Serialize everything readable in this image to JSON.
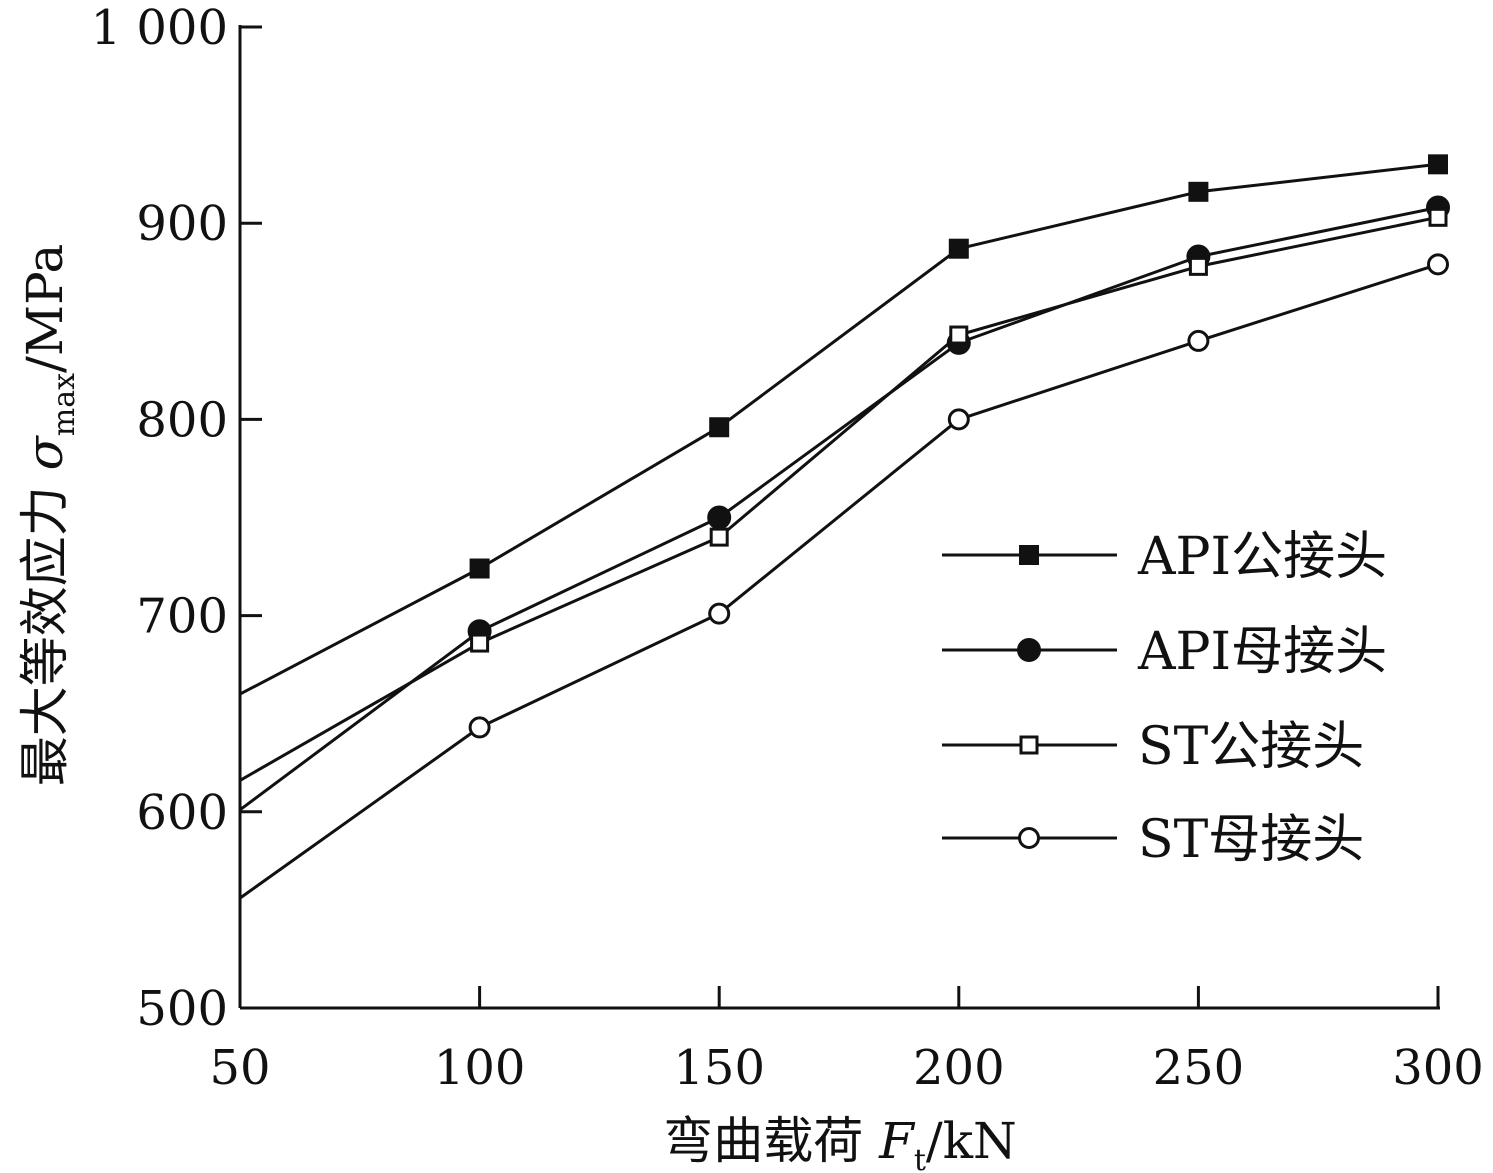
{
  "chart_data": {
    "type": "line",
    "x": [
      50,
      100,
      150,
      200,
      250,
      300
    ],
    "series": [
      {
        "name": "API公接头",
        "marker": "square-filled",
        "values": [
          660,
          724,
          796,
          887,
          916,
          930
        ]
      },
      {
        "name": "API母接头",
        "marker": "circle-filled",
        "values": [
          601,
          692,
          750,
          839,
          883,
          908
        ]
      },
      {
        "name": "ST公接头",
        "marker": "square-open",
        "values": [
          616,
          686,
          740,
          843,
          878,
          903
        ]
      },
      {
        "name": "ST母接头",
        "marker": "circle-open",
        "values": [
          556,
          643,
          701,
          800,
          840,
          879
        ]
      }
    ],
    "xlim": [
      50,
      300
    ],
    "ylim": [
      500,
      1000
    ],
    "xticks": [
      "50",
      "100",
      "150",
      "200",
      "250",
      "300"
    ],
    "yticks": [
      "500",
      "600",
      "700",
      "800",
      "900",
      "1 000"
    ],
    "xlabel": {
      "main": "弯曲载荷 ",
      "symbol": "F",
      "sub": "t",
      "unit": "/kN"
    },
    "ylabel": {
      "main": "最大等效应力 ",
      "symbol": "σ",
      "sub": "max",
      "unit": "/MPa"
    },
    "legend_position": "right",
    "grid": false,
    "line_color": "#111111"
  }
}
